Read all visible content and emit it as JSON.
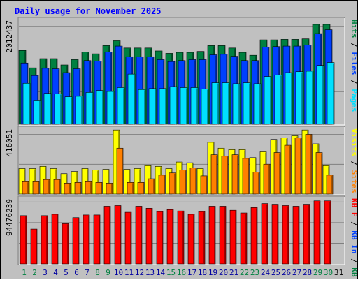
{
  "title": "Daily usage for November 2025",
  "colors": {
    "title": "#0000ff",
    "frame_bg": "#c0c0c0",
    "hits": "#008040",
    "files": "#0040ff",
    "pages": "#00e0ff",
    "visits": "#ffff00",
    "sites": "#ff8000",
    "kbytes": "#ff0000",
    "grid": "#808080",
    "weekend_label": "#008040",
    "weekday_label": "#0000a0"
  },
  "chart_data": [
    {
      "type": "bar",
      "name": "hits-files-pages",
      "y_tick_label": "2012437",
      "ylim": [
        0,
        2200000
      ],
      "categories": [
        "1",
        "2",
        "3",
        "4",
        "5",
        "6",
        "7",
        "8",
        "9",
        "10",
        "11",
        "12",
        "13",
        "14",
        "15",
        "16",
        "17",
        "18",
        "19",
        "20",
        "21",
        "22",
        "23",
        "24",
        "25",
        "26",
        "27",
        "28",
        "29",
        "30",
        "31"
      ],
      "legend": [
        {
          "label": "Hits",
          "color_key": "hits"
        },
        {
          "label": "Files",
          "color_key": "files"
        },
        {
          "label": "Pages",
          "color_key": "pages"
        }
      ],
      "series": [
        {
          "name": "Hits",
          "values": [
            1530000,
            1170000,
            1360000,
            1360000,
            1230000,
            1340000,
            1500000,
            1460000,
            1630000,
            1730000,
            1580000,
            1580000,
            1580000,
            1520000,
            1470000,
            1490000,
            1490000,
            1510000,
            1630000,
            1630000,
            1580000,
            1490000,
            1430000,
            1750000,
            1750000,
            1760000,
            1760000,
            1770000,
            2070000,
            2070000,
            0
          ]
        },
        {
          "name": "Files",
          "values": [
            1270000,
            1010000,
            1160000,
            1150000,
            1070000,
            1150000,
            1320000,
            1310000,
            1500000,
            1620000,
            1400000,
            1400000,
            1400000,
            1340000,
            1300000,
            1320000,
            1340000,
            1340000,
            1440000,
            1450000,
            1410000,
            1320000,
            1320000,
            1600000,
            1610000,
            1620000,
            1620000,
            1640000,
            1880000,
            1960000,
            0
          ]
        },
        {
          "name": "Pages",
          "values": [
            850000,
            500000,
            640000,
            630000,
            570000,
            580000,
            660000,
            700000,
            680000,
            760000,
            1040000,
            720000,
            740000,
            740000,
            780000,
            760000,
            760000,
            730000,
            860000,
            860000,
            840000,
            860000,
            840000,
            990000,
            1020000,
            1070000,
            1090000,
            1100000,
            1220000,
            1280000,
            0
          ]
        }
      ]
    },
    {
      "type": "bar",
      "name": "visits-sites",
      "y_tick_label": "416051",
      "ylim": [
        0,
        460000
      ],
      "categories": [
        "1",
        "2",
        "3",
        "4",
        "5",
        "6",
        "7",
        "8",
        "9",
        "10",
        "11",
        "12",
        "13",
        "14",
        "15",
        "16",
        "17",
        "18",
        "19",
        "20",
        "21",
        "22",
        "23",
        "24",
        "25",
        "26",
        "27",
        "28",
        "29",
        "30",
        "31"
      ],
      "legend": [
        {
          "label": "Visits",
          "color_key": "visits"
        },
        {
          "label": "Sites",
          "color_key": "sites"
        }
      ],
      "series": [
        {
          "name": "Visits",
          "values": [
            175000,
            175000,
            190000,
            175000,
            140000,
            155000,
            175000,
            165000,
            170000,
            440000,
            170000,
            175000,
            195000,
            190000,
            175000,
            220000,
            215000,
            175000,
            355000,
            315000,
            305000,
            305000,
            250000,
            290000,
            375000,
            385000,
            400000,
            440000,
            345000,
            195000,
            0
          ]
        },
        {
          "name": "Sites",
          "values": [
            85000,
            85000,
            100000,
            100000,
            75000,
            80000,
            85000,
            80000,
            75000,
            315000,
            80000,
            80000,
            105000,
            130000,
            145000,
            165000,
            180000,
            125000,
            270000,
            260000,
            270000,
            245000,
            150000,
            205000,
            285000,
            335000,
            385000,
            410000,
            285000,
            130000,
            0
          ]
        }
      ]
    },
    {
      "type": "bar",
      "name": "kbytes",
      "y_tick_label": "94476239",
      "ylim": [
        0,
        100000000
      ],
      "categories": [
        "1",
        "2",
        "3",
        "4",
        "5",
        "6",
        "7",
        "8",
        "9",
        "10",
        "11",
        "12",
        "13",
        "14",
        "15",
        "16",
        "17",
        "18",
        "19",
        "20",
        "21",
        "22",
        "23",
        "24",
        "25",
        "26",
        "27",
        "28",
        "29",
        "30",
        "31"
      ],
      "legend": [
        {
          "label": "KB F",
          "color_key": "kbytes"
        },
        {
          "label": "KB In",
          "color_key": "files"
        },
        {
          "label": "KB Out",
          "color_key": "hits"
        }
      ],
      "series": [
        {
          "name": "KB F",
          "values": [
            72000000,
            52000000,
            72000000,
            74000000,
            60000000,
            69000000,
            73000000,
            73000000,
            86000000,
            87000000,
            77000000,
            86000000,
            83000000,
            78000000,
            81000000,
            79000000,
            74000000,
            78000000,
            86000000,
            86000000,
            80000000,
            76000000,
            84000000,
            90000000,
            89000000,
            87000000,
            86000000,
            89000000,
            94000000,
            94000000,
            0
          ]
        }
      ]
    }
  ]
}
